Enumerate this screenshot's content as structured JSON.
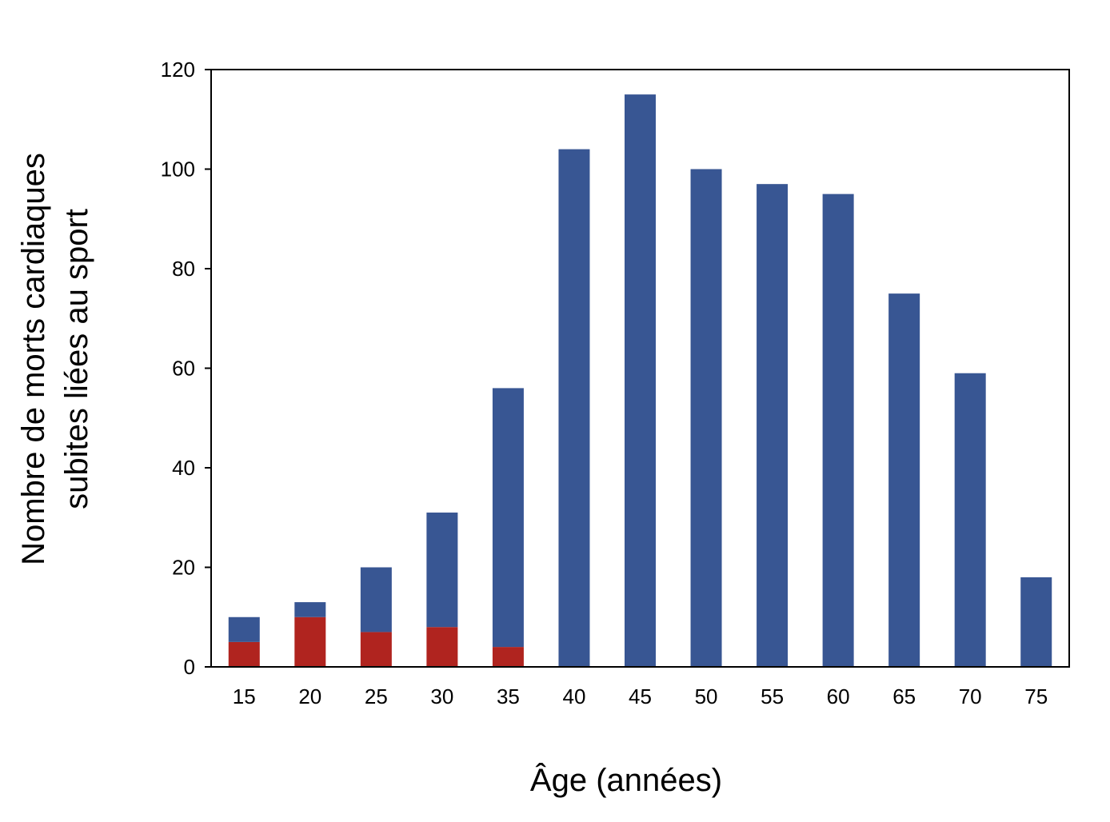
{
  "chart_data": {
    "type": "bar",
    "stacked": true,
    "categories": [
      "15",
      "20",
      "25",
      "30",
      "35",
      "40",
      "45",
      "50",
      "55",
      "60",
      "65",
      "70",
      "75"
    ],
    "series": [
      {
        "values": [
          5,
          10,
          7,
          8,
          4,
          0,
          0,
          0,
          0,
          0,
          0,
          0,
          0
        ],
        "color": "#b0241f"
      },
      {
        "values": [
          5,
          3,
          13,
          23,
          52,
          104,
          115,
          100,
          97,
          95,
          75,
          59,
          18
        ],
        "color": "#385693"
      }
    ],
    "xlabel": "Âge (années)",
    "ylabel_lines": [
      "Nombre de morts cardiaques",
      "subites liées au sport"
    ],
    "ylim": [
      0,
      120
    ],
    "yticks": [
      "0",
      "20",
      "40",
      "60",
      "80",
      "100",
      "120"
    ],
    "grid": false,
    "legend": "none"
  }
}
